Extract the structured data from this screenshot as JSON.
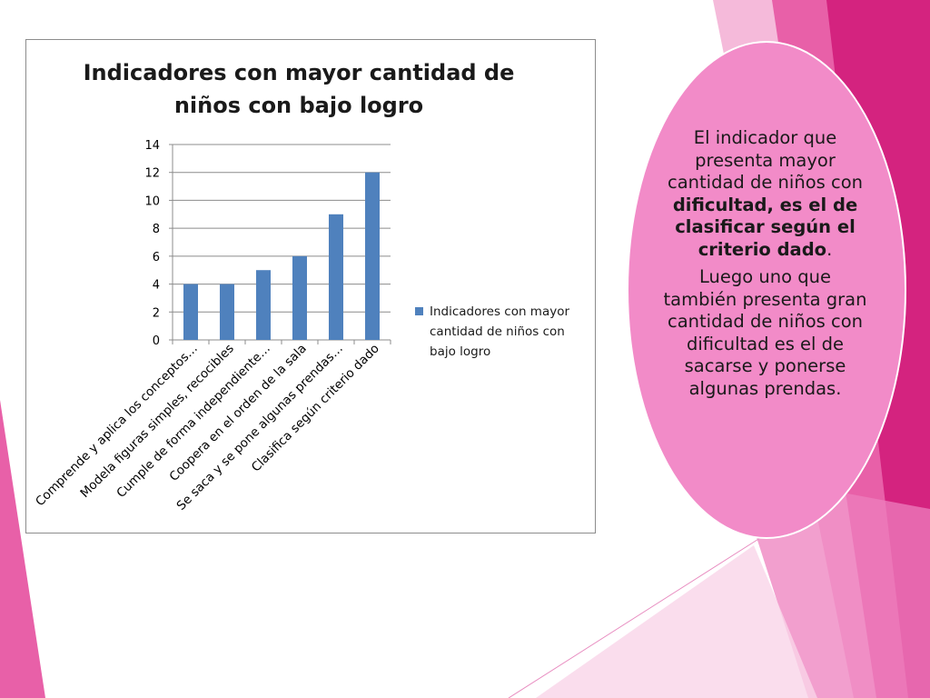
{
  "colors": {
    "bar": "#4f81bd",
    "callout_fill": "#f28bc8",
    "accent_magenta": "#d4237f",
    "accent_pink": "#e860a8",
    "accent_light": "#f4b3d6"
  },
  "chart_data": {
    "type": "bar",
    "title": "Indicadores con mayor cantidad de niños con bajo logro",
    "categories": [
      "Comprende y aplica los conceptos…",
      "Modela figuras simples, recocibles",
      "Cumple de forma independiente…",
      "Coopera en el orden de la sala",
      "Se saca y se pone algunas prendas…",
      "Clasifica según criterio dado"
    ],
    "series": [
      {
        "name": "Indicadores con mayor cantidad de niños con bajo logro",
        "values": [
          4,
          4,
          5,
          6,
          9,
          12
        ]
      }
    ],
    "ylim": [
      0,
      14
    ],
    "yticks": [
      "0",
      "2",
      "4",
      "6",
      "8",
      "10",
      "12",
      "14"
    ],
    "grid": true,
    "legend": "right"
  },
  "callout": {
    "p1_a": "El indicador que presenta mayor cantidad de niños con ",
    "p1_b": "dificultad, es el de clasificar según el criterio dado",
    "p1_c": ".",
    "p2": "Luego uno que también presenta gran cantidad de niños con dificultad es el de sacarse y ponerse algunas prendas."
  }
}
